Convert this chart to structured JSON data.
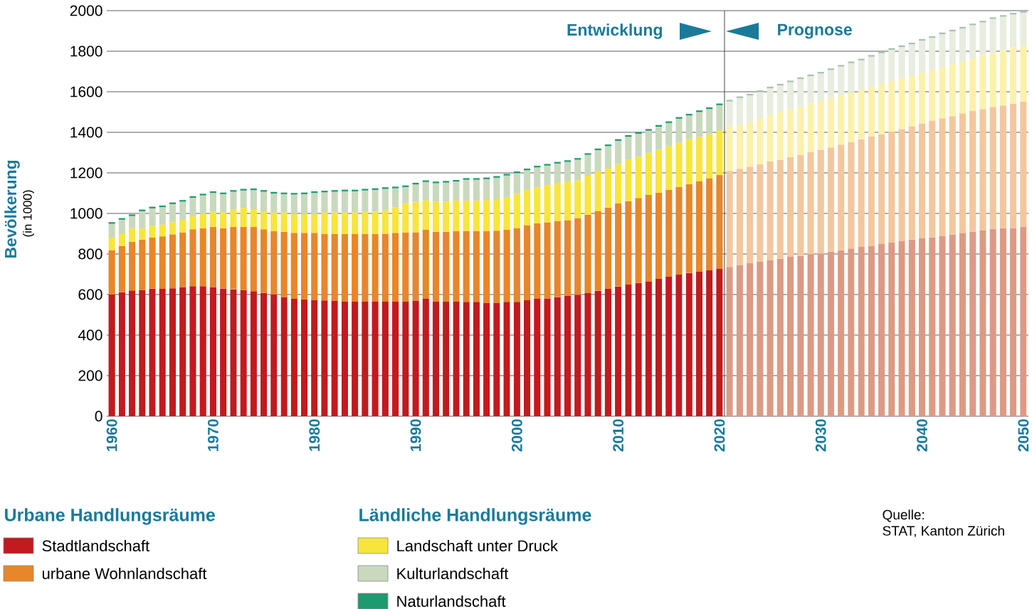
{
  "chart_data": {
    "type": "bar",
    "stacked": true,
    "ylabel": "Bevölkerung",
    "ylim": [
      0,
      2000
    ],
    "yticks": [
      0,
      200,
      400,
      600,
      800,
      1000,
      1200,
      1400,
      1600,
      1800,
      2000
    ],
    "xlim": [
      1959.5,
      2050.5
    ],
    "xticks": [
      1960,
      1970,
      1980,
      1990,
      2000,
      2010,
      2020,
      2030,
      2040,
      2050
    ],
    "grid": "y",
    "legend": "bottom",
    "ref_lines": [
      {
        "axis": "x",
        "value": 2020.5,
        "color": "#333333"
      }
    ],
    "annotations": [
      "Entwicklung",
      "Prognose",
      "(in 1000)",
      "Urbane Handlungsräume",
      "Ländliche Handlungsräume",
      "Quelle:",
      "STAT, Kanton Zürich"
    ],
    "x": [
      1960,
      1961,
      1962,
      1963,
      1964,
      1965,
      1966,
      1967,
      1968,
      1969,
      1970,
      1971,
      1972,
      1973,
      1974,
      1975,
      1976,
      1977,
      1978,
      1979,
      1980,
      1981,
      1982,
      1983,
      1984,
      1985,
      1986,
      1987,
      1988,
      1989,
      1990,
      1991,
      1992,
      1993,
      1994,
      1995,
      1996,
      1997,
      1998,
      1999,
      2000,
      2001,
      2002,
      2003,
      2004,
      2005,
      2006,
      2007,
      2008,
      2009,
      2010,
      2011,
      2012,
      2013,
      2014,
      2015,
      2016,
      2017,
      2018,
      2019,
      2020,
      2021,
      2022,
      2023,
      2024,
      2025,
      2026,
      2027,
      2028,
      2029,
      2030,
      2031,
      2032,
      2033,
      2034,
      2035,
      2036,
      2037,
      2038,
      2039,
      2040,
      2041,
      2042,
      2043,
      2044,
      2045,
      2046,
      2047,
      2048,
      2049,
      2050
    ],
    "series": [
      {
        "name": "Stadtlandschaft",
        "color": "#c21a1e",
        "values": [
          600,
          612,
          620,
          623,
          629,
          628,
          631,
          637,
          641,
          641,
          637,
          629,
          626,
          623,
          617,
          608,
          600,
          588,
          579,
          576,
          574,
          571,
          568,
          565,
          565,
          565,
          565,
          565,
          565,
          567,
          570,
          579,
          567,
          567,
          567,
          564,
          564,
          560,
          560,
          564,
          564,
          572,
          579,
          581,
          587,
          593,
          599,
          607,
          619,
          628,
          640,
          649,
          657,
          663,
          677,
          688,
          698,
          707,
          712,
          719,
          726,
          736,
          744,
          754,
          761,
          768,
          777,
          786,
          791,
          799,
          802,
          812,
          819,
          827,
          835,
          841,
          849,
          857,
          863,
          871,
          877,
          882,
          888,
          896,
          902,
          910,
          916,
          924,
          927,
          929,
          934
        ],
        "colors": [
          "#c21a1e",
          "#c21a1e",
          "#c21a1e",
          "#c21a1e",
          "#c21a1e",
          "#c21a1e",
          "#c21a1e",
          "#c21a1e",
          "#c21a1e",
          "#c21a1e",
          "#c21a1e",
          "#c21a1e",
          "#c21a1e",
          "#c21a1e",
          "#c21a1e",
          "#c21a1e",
          "#c21a1e",
          "#c21a1e",
          "#c21a1e",
          "#c21a1e",
          "#c21a1e",
          "#c21a1e",
          "#c21a1e",
          "#c21a1e",
          "#c21a1e",
          "#c21a1e",
          "#c21a1e",
          "#c21a1e",
          "#c21a1e",
          "#c21a1e",
          "#c21a1e",
          "#c21a1e",
          "#c21a1e",
          "#c21a1e",
          "#c21a1e",
          "#c21a1e",
          "#c21a1e",
          "#c21a1e",
          "#c21a1e",
          "#c21a1e",
          "#c21a1e",
          "#c21a1e",
          "#c21a1e",
          "#c21a1e",
          "#c21a1e",
          "#c21a1e",
          "#c21a1e",
          "#c21a1e",
          "#c21a1e",
          "#c21a1e",
          "#c21a1e",
          "#c21a1e",
          "#c21a1e",
          "#c21a1e",
          "#c21a1e",
          "#c21a1e",
          "#c21a1e",
          "#c21a1e",
          "#c21a1e",
          "#c21a1e",
          "#c21a1e",
          "#dc9a85",
          "#dc9a85",
          "#dc9a85",
          "#dc9a85",
          "#dc9a85",
          "#dc9a85",
          "#dc9a85",
          "#dc9a85",
          "#dc9a85",
          "#dc9a85",
          "#dc9a85",
          "#dc9a85",
          "#dc9a85",
          "#dc9a85",
          "#dc9a85",
          "#dc9a85",
          "#dc9a85",
          "#dc9a85",
          "#dc9a85",
          "#dc9a85",
          "#dc9a85",
          "#dc9a85",
          "#dc9a85",
          "#dc9a85",
          "#dc9a85",
          "#dc9a85",
          "#dc9a85",
          "#dc9a85",
          "#dc9a85",
          "#dc9a85"
        ]
      },
      {
        "name": "urbane Wohnlandschaft",
        "color": "#e8862b",
        "values": [
          219,
          228,
          240,
          248,
          252,
          259,
          266,
          269,
          281,
          286,
          296,
          298,
          307,
          310,
          316,
          314,
          313,
          322,
          325,
          328,
          330,
          327,
          330,
          333,
          333,
          333,
          333,
          335,
          339,
          338,
          337,
          340,
          342,
          342,
          346,
          349,
          349,
          353,
          355,
          355,
          364,
          370,
          372,
          375,
          375,
          374,
          378,
          387,
          393,
          401,
          409,
          411,
          419,
          428,
          425,
          428,
          432,
          438,
          448,
          455,
          463,
          474,
          476,
          477,
          481,
          488,
          488,
          492,
          498,
          504,
          512,
          513,
          520,
          526,
          531,
          539,
          541,
          545,
          553,
          559,
          567,
          576,
          581,
          584,
          592,
          595,
          599,
          601,
          605,
          613,
          618
        ],
        "colors": [
          "#e8862b",
          "#e8862b",
          "#e8862b",
          "#e8862b",
          "#e8862b",
          "#e8862b",
          "#e8862b",
          "#e8862b",
          "#e8862b",
          "#e8862b",
          "#e8862b",
          "#e8862b",
          "#e8862b",
          "#e8862b",
          "#e8862b",
          "#e8862b",
          "#e8862b",
          "#e8862b",
          "#e8862b",
          "#e8862b",
          "#e8862b",
          "#e8862b",
          "#e8862b",
          "#e8862b",
          "#e8862b",
          "#e8862b",
          "#e8862b",
          "#e8862b",
          "#e8862b",
          "#e8862b",
          "#e8862b",
          "#e8862b",
          "#e8862b",
          "#e8862b",
          "#e8862b",
          "#e8862b",
          "#e8862b",
          "#e8862b",
          "#e8862b",
          "#e8862b",
          "#e8862b",
          "#e8862b",
          "#e8862b",
          "#e8862b",
          "#e8862b",
          "#e8862b",
          "#e8862b",
          "#e8862b",
          "#e8862b",
          "#e8862b",
          "#e8862b",
          "#e8862b",
          "#e8862b",
          "#e8862b",
          "#e8862b",
          "#e8862b",
          "#e8862b",
          "#e8862b",
          "#e8862b",
          "#e8862b",
          "#e8862b",
          "#f3c79e",
          "#f3c79e",
          "#f3c79e",
          "#f3c79e",
          "#f3c79e",
          "#f3c79e",
          "#f3c79e",
          "#f3c79e",
          "#f3c79e",
          "#f3c79e",
          "#f3c79e",
          "#f3c79e",
          "#f3c79e",
          "#f3c79e",
          "#f3c79e",
          "#f3c79e",
          "#f3c79e",
          "#f3c79e",
          "#f3c79e",
          "#f3c79e",
          "#f3c79e",
          "#f3c79e",
          "#f3c79e",
          "#f3c79e",
          "#f3c79e",
          "#f3c79e",
          "#f3c79e",
          "#f3c79e",
          "#f3c79e",
          "#f3c79e"
        ]
      },
      {
        "name": "Landschaft unter Druck",
        "color": "#f8e53c",
        "values": [
          62,
          58,
          67,
          56,
          58,
          58,
          60,
          62,
          64,
          71,
          76,
          77,
          88,
          94,
          88,
          87,
          91,
          94,
          94,
          94,
          94,
          106,
          106,
          106,
          106,
          111,
          111,
          115,
          126,
          145,
          151,
          145,
          149,
          149,
          151,
          151,
          151,
          153,
          155,
          162,
          171,
          174,
          177,
          184,
          189,
          190,
          186,
          192,
          195,
          192,
          195,
          205,
          203,
          206,
          212,
          215,
          219,
          221,
          218,
          216,
          222,
          221,
          218,
          221,
          224,
          231,
          235,
          236,
          239,
          239,
          242,
          245,
          245,
          244,
          245,
          245,
          249,
          251,
          250,
          250,
          250,
          250,
          253,
          256,
          256,
          258,
          262,
          266,
          273,
          277,
          274
        ],
        "colors": [
          "#f8e53c",
          "#f8e53c",
          "#f8e53c",
          "#f8e53c",
          "#f8e53c",
          "#f8e53c",
          "#f8e53c",
          "#f8e53c",
          "#f8e53c",
          "#f8e53c",
          "#f8e53c",
          "#f8e53c",
          "#f8e53c",
          "#f8e53c",
          "#f8e53c",
          "#f8e53c",
          "#f8e53c",
          "#f8e53c",
          "#f8e53c",
          "#f8e53c",
          "#f8e53c",
          "#f8e53c",
          "#f8e53c",
          "#f8e53c",
          "#f8e53c",
          "#f8e53c",
          "#f8e53c",
          "#f8e53c",
          "#f8e53c",
          "#f8e53c",
          "#f8e53c",
          "#f8e53c",
          "#f8e53c",
          "#f8e53c",
          "#f8e53c",
          "#f8e53c",
          "#f8e53c",
          "#f8e53c",
          "#f8e53c",
          "#f8e53c",
          "#f8e53c",
          "#f8e53c",
          "#f8e53c",
          "#f8e53c",
          "#f8e53c",
          "#f8e53c",
          "#f8e53c",
          "#f8e53c",
          "#f8e53c",
          "#f8e53c",
          "#f8e53c",
          "#f8e53c",
          "#f8e53c",
          "#f8e53c",
          "#f8e53c",
          "#f8e53c",
          "#f8e53c",
          "#f8e53c",
          "#f8e53c",
          "#f8e53c",
          "#f8e53c",
          "#fbf1aa",
          "#fbf1aa",
          "#fbf1aa",
          "#fbf1aa",
          "#fbf1aa",
          "#fbf1aa",
          "#fbf1aa",
          "#fbf1aa",
          "#fbf1aa",
          "#fbf1aa",
          "#fbf1aa",
          "#fbf1aa",
          "#fbf1aa",
          "#fbf1aa",
          "#fbf1aa",
          "#fbf1aa",
          "#fbf1aa",
          "#fbf1aa",
          "#fbf1aa",
          "#fbf1aa",
          "#fbf1aa",
          "#fbf1aa",
          "#fbf1aa",
          "#fbf1aa",
          "#fbf1aa",
          "#fbf1aa",
          "#fbf1aa",
          "#fbf1aa",
          "#fbf1aa",
          "#fbf1aa"
        ]
      },
      {
        "name": "Kulturlandschaft",
        "color": "#c9d9bd",
        "values": [
          68,
          71,
          60,
          84,
          86,
          86,
          89,
          90,
          91,
          91,
          92,
          91,
          86,
          86,
          94,
          98,
          94,
          91,
          95,
          97,
          103,
          100,
          103,
          105,
          105,
          104,
          107,
          106,
          94,
          80,
          85,
          91,
          91,
          94,
          93,
          102,
          102,
          103,
          106,
          106,
          100,
          97,
          99,
          96,
          95,
          97,
          102,
          103,
          105,
          111,
          114,
          113,
          114,
          111,
          114,
          115,
          118,
          117,
          122,
          125,
          123,
          121,
          131,
          130,
          133,
          130,
          131,
          133,
          135,
          135,
          134,
          137,
          140,
          144,
          144,
          148,
          151,
          154,
          155,
          154,
          158,
          158,
          162,
          162,
          162,
          165,
          165,
          168,
          165,
          162,
          164
        ],
        "colors": [
          "#c9d9bd",
          "#c9d9bd",
          "#c9d9bd",
          "#c9d9bd",
          "#c9d9bd",
          "#c9d9bd",
          "#c9d9bd",
          "#c9d9bd",
          "#c9d9bd",
          "#c9d9bd",
          "#c9d9bd",
          "#c9d9bd",
          "#c9d9bd",
          "#c9d9bd",
          "#c9d9bd",
          "#c9d9bd",
          "#c9d9bd",
          "#c9d9bd",
          "#c9d9bd",
          "#c9d9bd",
          "#c9d9bd",
          "#c9d9bd",
          "#c9d9bd",
          "#c9d9bd",
          "#c9d9bd",
          "#c9d9bd",
          "#c9d9bd",
          "#c9d9bd",
          "#c9d9bd",
          "#c9d9bd",
          "#c9d9bd",
          "#c9d9bd",
          "#c9d9bd",
          "#c9d9bd",
          "#c9d9bd",
          "#c9d9bd",
          "#c9d9bd",
          "#c9d9bd",
          "#c9d9bd",
          "#c9d9bd",
          "#c9d9bd",
          "#c9d9bd",
          "#c9d9bd",
          "#c9d9bd",
          "#c9d9bd",
          "#c9d9bd",
          "#c9d9bd",
          "#c9d9bd",
          "#c9d9bd",
          "#c9d9bd",
          "#c9d9bd",
          "#c9d9bd",
          "#c9d9bd",
          "#c9d9bd",
          "#c9d9bd",
          "#c9d9bd",
          "#c9d9bd",
          "#c9d9bd",
          "#c9d9bd",
          "#c9d9bd",
          "#c9d9bd",
          "#e8eddf",
          "#e8eddf",
          "#e8eddf",
          "#e8eddf",
          "#e8eddf",
          "#e8eddf",
          "#e8eddf",
          "#e8eddf",
          "#e8eddf",
          "#e8eddf",
          "#e8eddf",
          "#e8eddf",
          "#e8eddf",
          "#e8eddf",
          "#e8eddf",
          "#e8eddf",
          "#e8eddf",
          "#e8eddf",
          "#e8eddf",
          "#e8eddf",
          "#e8eddf",
          "#e8eddf",
          "#e8eddf",
          "#e8eddf",
          "#e8eddf",
          "#e8eddf",
          "#e8eddf",
          "#e8eddf",
          "#e8eddf",
          "#e8eddf"
        ]
      },
      {
        "name": "Naturlandschaft",
        "color": "#1e9a70",
        "values": [
          8,
          8,
          8,
          8,
          8,
          8,
          8,
          8,
          8,
          8,
          8,
          8,
          8,
          8,
          8,
          8,
          8,
          8,
          8,
          8,
          8,
          8,
          8,
          8,
          8,
          8,
          8,
          8,
          8,
          8,
          8,
          8,
          8,
          8,
          8,
          8,
          8,
          8,
          8,
          8,
          8,
          8,
          8,
          8,
          8,
          8,
          8,
          8,
          8,
          8,
          8,
          8,
          8,
          8,
          8,
          8,
          8,
          8,
          8,
          8,
          8,
          8,
          8,
          8,
          8,
          8,
          8,
          8,
          8,
          8,
          8,
          8,
          8,
          8,
          8,
          8,
          8,
          8,
          8,
          8,
          8,
          8,
          8,
          8,
          8,
          8,
          8,
          8,
          8,
          8,
          8
        ],
        "colors": [
          "#1e9a70",
          "#1e9a70",
          "#1e9a70",
          "#1e9a70",
          "#1e9a70",
          "#1e9a70",
          "#1e9a70",
          "#1e9a70",
          "#1e9a70",
          "#1e9a70",
          "#1e9a70",
          "#1e9a70",
          "#1e9a70",
          "#1e9a70",
          "#1e9a70",
          "#1e9a70",
          "#1e9a70",
          "#1e9a70",
          "#1e9a70",
          "#1e9a70",
          "#1e9a70",
          "#1e9a70",
          "#1e9a70",
          "#1e9a70",
          "#1e9a70",
          "#1e9a70",
          "#1e9a70",
          "#1e9a70",
          "#1e9a70",
          "#1e9a70",
          "#1e9a70",
          "#1e9a70",
          "#1e9a70",
          "#1e9a70",
          "#1e9a70",
          "#1e9a70",
          "#1e9a70",
          "#1e9a70",
          "#1e9a70",
          "#1e9a70",
          "#1e9a70",
          "#1e9a70",
          "#1e9a70",
          "#1e9a70",
          "#1e9a70",
          "#1e9a70",
          "#1e9a70",
          "#1e9a70",
          "#1e9a70",
          "#1e9a70",
          "#1e9a70",
          "#1e9a70",
          "#1e9a70",
          "#1e9a70",
          "#1e9a70",
          "#1e9a70",
          "#1e9a70",
          "#1e9a70",
          "#1e9a70",
          "#1e9a70",
          "#1e9a70",
          "#a7c2b1",
          "#a7c2b1",
          "#a7c2b1",
          "#a7c2b1",
          "#a7c2b1",
          "#a7c2b1",
          "#a7c2b1",
          "#a7c2b1",
          "#a7c2b1",
          "#a7c2b1",
          "#a7c2b1",
          "#a7c2b1",
          "#a7c2b1",
          "#a7c2b1",
          "#a7c2b1",
          "#a7c2b1",
          "#a7c2b1",
          "#a7c2b1",
          "#a7c2b1",
          "#a7c2b1",
          "#a7c2b1",
          "#a7c2b1",
          "#a7c2b1",
          "#a7c2b1",
          "#a7c2b1",
          "#a7c2b1",
          "#a7c2b1",
          "#a7c2b1",
          "#a7c2b1",
          "#a7c2b1"
        ]
      }
    ]
  }
}
